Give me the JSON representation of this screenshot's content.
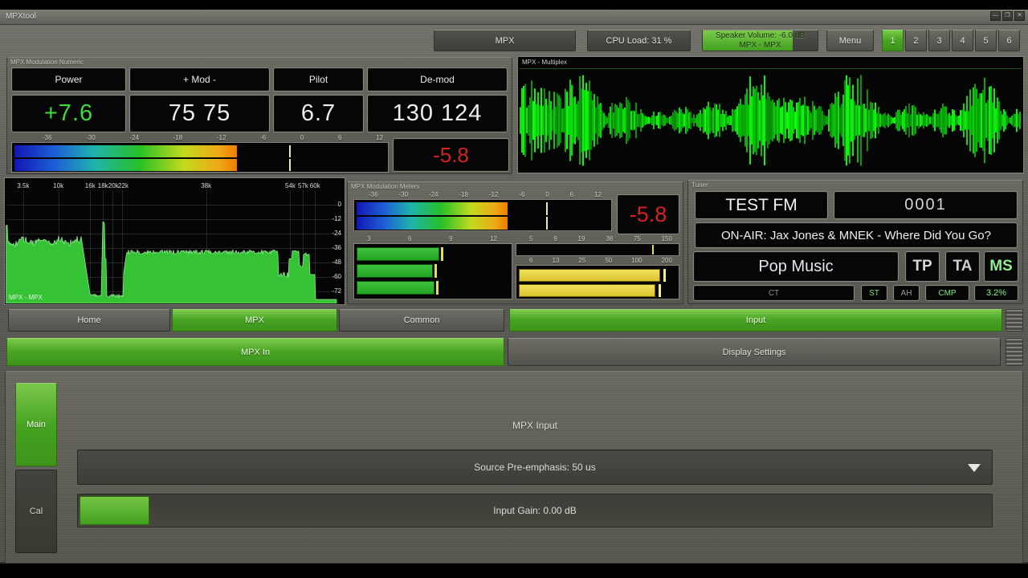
{
  "window": {
    "title": "MPXtool",
    "minimize_icon": "—",
    "maximize_icon": "❐",
    "close_icon": "✕"
  },
  "toolbar": {
    "mpx_button": "MPX",
    "cpu_load": "CPU Load: 31 %",
    "speaker_volume_line1": "Speaker Volume: -6.0 dB",
    "speaker_volume_line2": "MPX - MPX",
    "speaker_fill_pct": 78,
    "menu": "Menu",
    "presets": [
      "1",
      "2",
      "3",
      "4",
      "5",
      "6"
    ],
    "active_preset": "1"
  },
  "numeric_panel": {
    "title": "MPX Modulation Numeric",
    "columns": [
      {
        "label": "Power",
        "value": "+7.6",
        "value_color": "#3cdc3c"
      },
      {
        "label": "+ Mod -",
        "value": "75 75",
        "value_color": "#ededed"
      },
      {
        "label": "Pilot",
        "value": "6.7",
        "value_color": "#ededed"
      },
      {
        "label": "De-mod",
        "value": "130 124",
        "value_color": "#ededed"
      }
    ],
    "meter_scale": [
      "-36",
      "-30",
      "-24",
      "-18",
      "-12",
      "-6",
      "0",
      "6",
      "12"
    ],
    "meter_fill_pct": 60,
    "meter_marker_pct": 74,
    "peak_value": "-5.8"
  },
  "multiplex_panel": {
    "title": "MPX - Multiplex"
  },
  "spectrum_panel": {
    "x_labels": [
      "3.5k",
      "10k",
      "16k",
      "18k",
      "20k",
      "22k",
      "38k",
      "54k",
      "57k",
      "60k"
    ],
    "y_labels": [
      "0",
      "-12",
      "-24",
      "-36",
      "-48",
      "-60",
      "-72"
    ],
    "corner_label": "MPX - MPX"
  },
  "meters_panel": {
    "title": "MPX Modulation Meters",
    "main_scale": [
      "-36",
      "-30",
      "-24",
      "-18",
      "-12",
      "-6",
      "0",
      "6",
      "12"
    ],
    "main_fill_pct": 60,
    "main_marker_pct": 75,
    "peak_value": "-5.8",
    "pilot_scale": [
      "3",
      "6",
      "9",
      "12"
    ],
    "pilot_bars": [
      {
        "fill_pct": 53,
        "peak_pct": 55
      },
      {
        "fill_pct": 49,
        "peak_pct": 51
      },
      {
        "fill_pct": 50,
        "peak_pct": 52
      }
    ],
    "aux_scale": [
      "5",
      "9",
      "19",
      "38",
      "75",
      "150"
    ],
    "aux_marker_pct": 84,
    "dev_scale": [
      "6",
      "13",
      "25",
      "50",
      "100",
      "200"
    ],
    "dev_bars": [
      {
        "fill_pct": 88,
        "peak_pct": 91
      },
      {
        "fill_pct": 85,
        "peak_pct": 88
      }
    ]
  },
  "tuner": {
    "title": "Tuner",
    "station_name": "TEST FM",
    "pi_code": "0001",
    "radiotext": "ON-AIR: Jax Jones & MNEK - Where Did You Go?",
    "program_type": "Pop Music",
    "tp": "TP",
    "ta": "TA",
    "ms": "MS",
    "ct": "CT",
    "st": "ST",
    "ah": "AH",
    "cmp": "CMP",
    "percent": "3.2%"
  },
  "tabs": {
    "row1": [
      {
        "label": "Home",
        "active": false
      },
      {
        "label": "MPX",
        "active": true
      },
      {
        "label": "Common",
        "active": false
      },
      {
        "label": "Input",
        "active": true
      }
    ],
    "row2": [
      {
        "label": "MPX In",
        "active": true
      },
      {
        "label": "Display Settings",
        "active": false
      }
    ]
  },
  "settings": {
    "side_tabs": [
      {
        "label": "Main",
        "active": true
      },
      {
        "label": "Cal",
        "active": false
      }
    ],
    "section_title": "MPX Input",
    "preemphasis_value": "Source Pre-emphasis: 50 us",
    "input_gain_value": "Input Gain: 0.00 dB"
  },
  "colors": {
    "accent_green": "#47a322",
    "value_green": "#3cdc3c",
    "alarm_red": "#d42222",
    "meter_yellow": "#e6cf3a"
  }
}
